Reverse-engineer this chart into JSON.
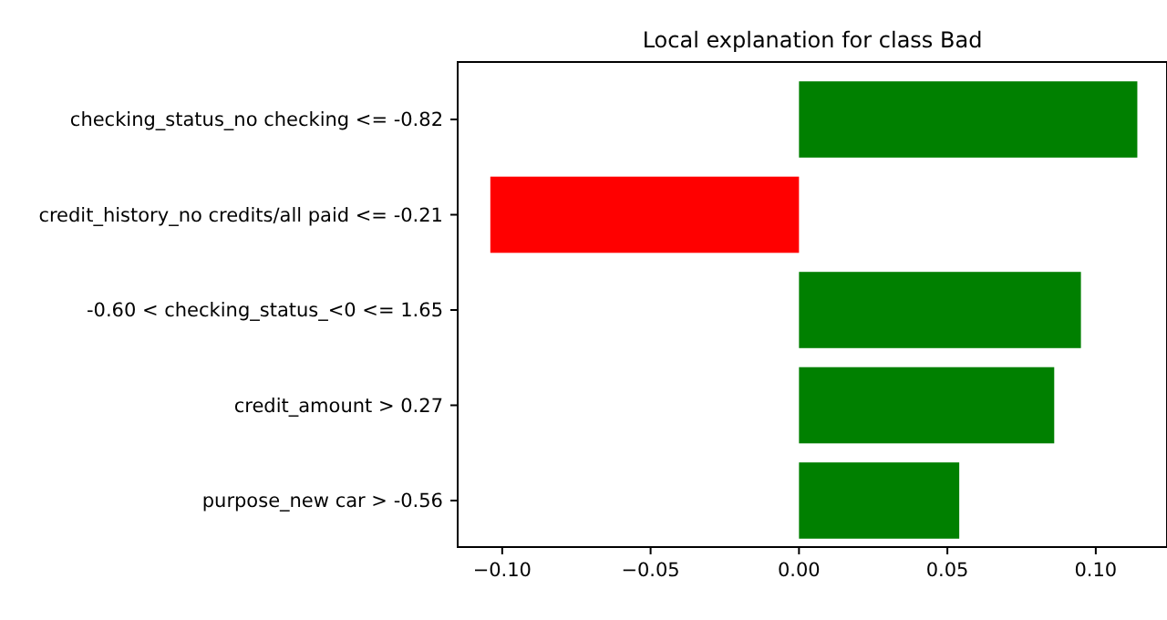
{
  "chart_data": {
    "type": "bar",
    "orientation": "horizontal",
    "title": "Local explanation for class Bad",
    "categories": [
      "checking_status_no checking <= -0.82",
      "credit_history_no credits/all paid <= -0.21",
      "-0.60 < checking_status_<0 <= 1.65",
      "credit_amount > 0.27",
      "purpose_new car > -0.56"
    ],
    "values": [
      0.114,
      -0.104,
      0.095,
      0.086,
      0.054
    ],
    "colors": [
      "#008000",
      "#ff0000",
      "#008000",
      "#008000",
      "#008000"
    ],
    "xlim": [
      -0.115,
      0.124
    ],
    "xticks": [
      {
        "value": -0.1,
        "label": "−0.10"
      },
      {
        "value": -0.05,
        "label": "−0.05"
      },
      {
        "value": 0,
        "label": "0.00"
      },
      {
        "value": 0.05,
        "label": "0.05"
      },
      {
        "value": 0.1,
        "label": "0.10"
      }
    ]
  }
}
